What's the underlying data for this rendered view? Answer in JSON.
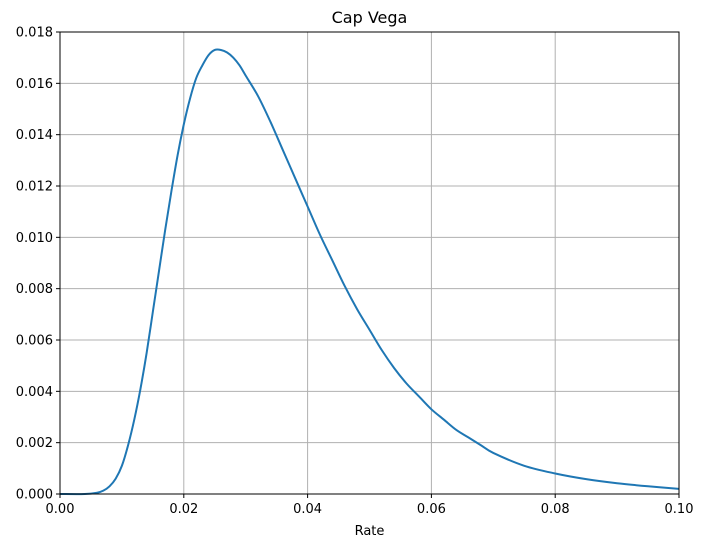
{
  "chart_data": {
    "type": "line",
    "title": "Cap Vega",
    "xlabel": "Rate",
    "ylabel": "",
    "xlim": [
      0,
      0.1
    ],
    "ylim": [
      0,
      0.018
    ],
    "grid": true,
    "x_ticks": [
      0.0,
      0.02,
      0.04,
      0.06,
      0.08,
      0.1
    ],
    "x_tick_labels": [
      "0.00",
      "0.02",
      "0.04",
      "0.06",
      "0.08",
      "0.10"
    ],
    "y_ticks": [
      0.0,
      0.002,
      0.004,
      0.006,
      0.008,
      0.01,
      0.012,
      0.014,
      0.016,
      0.018
    ],
    "y_tick_labels": [
      "0.000",
      "0.002",
      "0.004",
      "0.006",
      "0.008",
      "0.010",
      "0.012",
      "0.014",
      "0.016",
      "0.018"
    ],
    "series": [
      {
        "color": "#1f77b4",
        "x": [
          0.0,
          0.004,
          0.006,
          0.007,
          0.008,
          0.009,
          0.01,
          0.011,
          0.012,
          0.013,
          0.014,
          0.015,
          0.016,
          0.017,
          0.018,
          0.019,
          0.02,
          0.021,
          0.022,
          0.023,
          0.024,
          0.025,
          0.026,
          0.027,
          0.028,
          0.029,
          0.03,
          0.032,
          0.034,
          0.036,
          0.038,
          0.04,
          0.042,
          0.044,
          0.046,
          0.048,
          0.05,
          0.052,
          0.054,
          0.056,
          0.058,
          0.06,
          0.062,
          0.064,
          0.066,
          0.068,
          0.07,
          0.075,
          0.08,
          0.085,
          0.09,
          0.095,
          0.1
        ],
        "y": [
          0.0,
          0.0,
          5e-05,
          0.00013,
          0.0003,
          0.0006,
          0.0011,
          0.0019,
          0.0029,
          0.0041,
          0.0055,
          0.0071,
          0.0087,
          0.0103,
          0.0118,
          0.0132,
          0.0144,
          0.0154,
          0.0162,
          0.0167,
          0.0171,
          0.0173,
          0.0173,
          0.0172,
          0.017,
          0.0167,
          0.0163,
          0.0155,
          0.0145,
          0.0134,
          0.0123,
          0.0112,
          0.0101,
          0.0091,
          0.0081,
          0.0072,
          0.0064,
          0.0056,
          0.0049,
          0.0043,
          0.0038,
          0.0033,
          0.0029,
          0.0025,
          0.0022,
          0.0019,
          0.0016,
          0.0011,
          0.0008,
          0.00058,
          0.00042,
          0.0003,
          0.0002
        ]
      }
    ]
  }
}
